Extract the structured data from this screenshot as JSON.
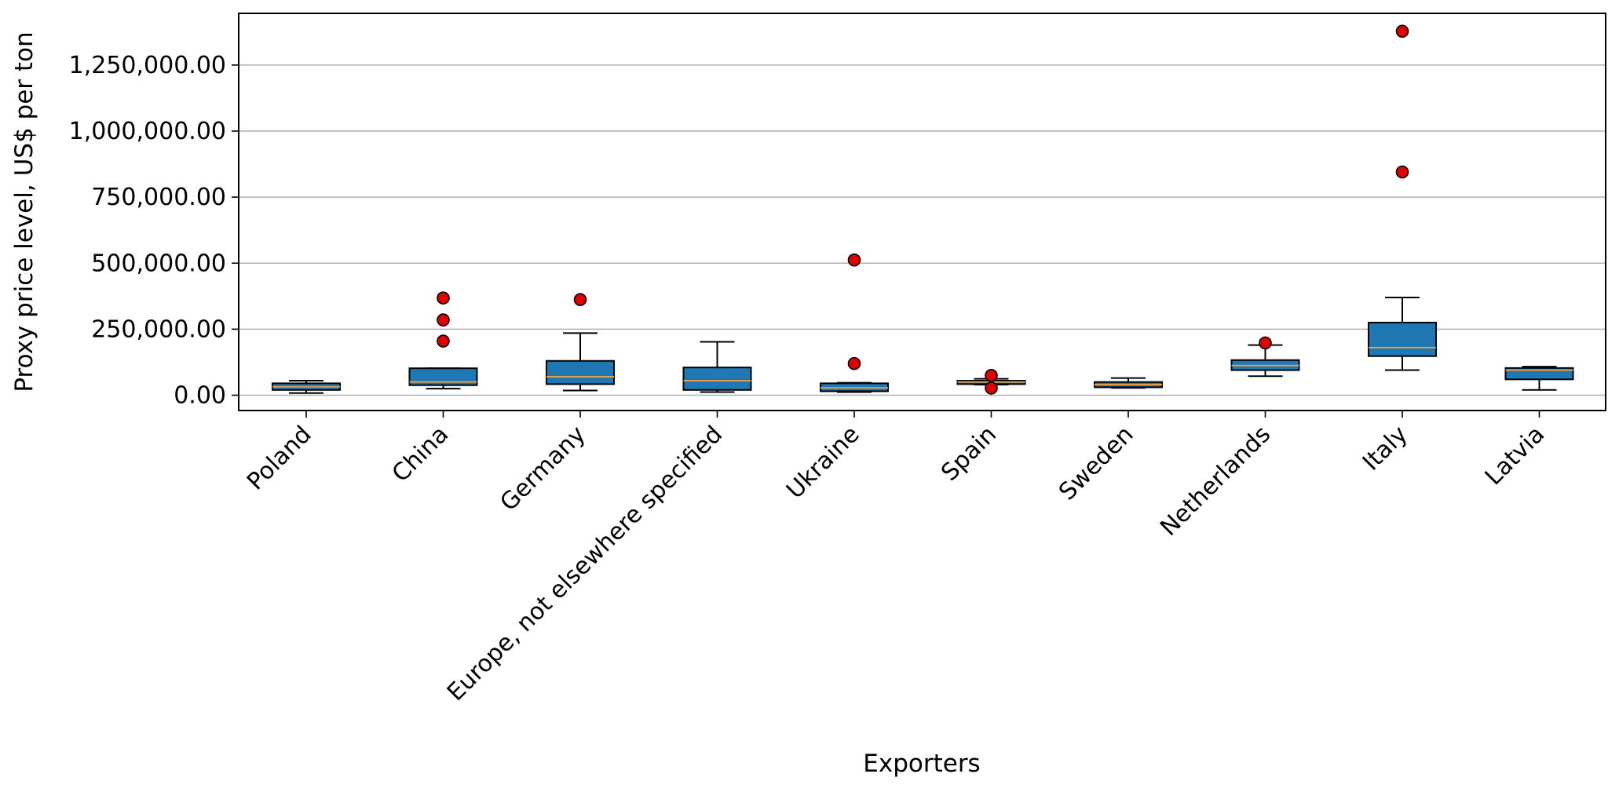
{
  "chart_data": {
    "type": "box",
    "xlabel": "Exporters",
    "ylabel": "Proxy price level, US$ per ton",
    "ylim": [
      -60000,
      1440000
    ],
    "yticks": [
      0,
      250000,
      500000,
      750000,
      1000000,
      1250000
    ],
    "ytick_labels": [
      "0.00",
      "250,000.00",
      "500,000.00",
      "750,000.00",
      "1,000,000.00",
      "1,250,000.00"
    ],
    "grid": "y-major",
    "colors": {
      "box_fill": "#1f77b4",
      "median": "#e39b4a",
      "outlier": "#e00000",
      "grid": "#b0b0b0",
      "line": "#000000"
    },
    "categories": [
      "Poland",
      "China",
      "Germany",
      "Europe, not elsewhere specified",
      "Ukraine",
      "Spain",
      "Sweden",
      "Netherlands",
      "Italy",
      "Latvia"
    ],
    "boxes": [
      {
        "category": "Poland",
        "whisker_low": 8000,
        "q1": 20000,
        "median": 32000,
        "q3": 45000,
        "whisker_high": 55000,
        "outliers": []
      },
      {
        "category": "China",
        "whisker_low": 25000,
        "q1": 38000,
        "median": 50000,
        "q3": 102000,
        "whisker_high": 102000,
        "outliers": [
          205000,
          285000,
          368000
        ]
      },
      {
        "category": "Germany",
        "whisker_low": 18000,
        "q1": 42000,
        "median": 70000,
        "q3": 130000,
        "whisker_high": 235000,
        "outliers": [
          362000
        ]
      },
      {
        "category": "Europe, not elsewhere specified",
        "whisker_low": 12000,
        "q1": 20000,
        "median": 55000,
        "q3": 105000,
        "whisker_high": 202000,
        "outliers": []
      },
      {
        "category": "Ukraine",
        "whisker_low": 12000,
        "q1": 15000,
        "median": 28000,
        "q3": 45000,
        "whisker_high": 47000,
        "outliers": [
          120000,
          512000
        ]
      },
      {
        "category": "Spain",
        "whisker_low": 40000,
        "q1": 42000,
        "median": 50000,
        "q3": 55000,
        "whisker_high": 62000,
        "outliers": [
          27000,
          75000
        ]
      },
      {
        "category": "Sweden",
        "whisker_low": 28000,
        "q1": 30000,
        "median": 40000,
        "q3": 50000,
        "whisker_high": 65000,
        "outliers": []
      },
      {
        "category": "Netherlands",
        "whisker_low": 72000,
        "q1": 95000,
        "median": 112000,
        "q3": 133000,
        "whisker_high": 190000,
        "outliers": [
          198000
        ]
      },
      {
        "category": "Italy",
        "whisker_low": 95000,
        "q1": 148000,
        "median": 180000,
        "q3": 275000,
        "whisker_high": 370000,
        "outliers": [
          845000,
          1378000
        ]
      },
      {
        "category": "Latvia",
        "whisker_low": 20000,
        "q1": 60000,
        "median": 95000,
        "q3": 103000,
        "whisker_high": 108000,
        "outliers": []
      }
    ]
  }
}
